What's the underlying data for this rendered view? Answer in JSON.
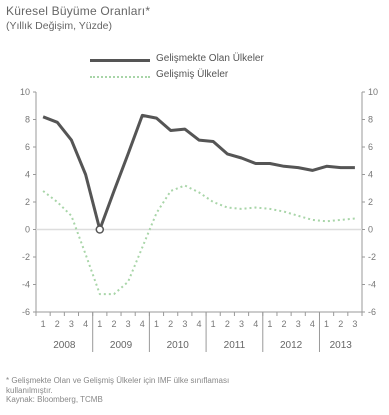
{
  "chart_data": {
    "type": "line",
    "title": "Küresel Büyüme Oranları*",
    "subtitle": "(Yıllık Değişim, Yüzde)",
    "categories": [
      "1",
      "2",
      "3",
      "4",
      "1",
      "2",
      "3",
      "4",
      "1",
      "2",
      "3",
      "4",
      "1",
      "2",
      "3",
      "4",
      "1",
      "2",
      "3",
      "4",
      "1",
      "2",
      "3"
    ],
    "year_groups": [
      {
        "label": "2008",
        "quarters": 4
      },
      {
        "label": "2009",
        "quarters": 4
      },
      {
        "label": "2010",
        "quarters": 4
      },
      {
        "label": "2011",
        "quarters": 4
      },
      {
        "label": "2012",
        "quarters": 4
      },
      {
        "label": "2013",
        "quarters": 3
      }
    ],
    "series": [
      {
        "name": "Gelişmekte Olan Ülkeler",
        "style": "solid",
        "color": "#555555",
        "values": [
          8.2,
          7.8,
          6.5,
          4.0,
          0.0,
          2.8,
          5.5,
          8.3,
          8.1,
          7.2,
          7.3,
          6.5,
          6.4,
          5.5,
          5.2,
          4.8,
          4.8,
          4.6,
          4.5,
          4.3,
          4.6,
          4.5,
          4.5
        ]
      },
      {
        "name": "Gelişmiş Ülkeler",
        "style": "dotted",
        "color": "#a8d5a8",
        "values": [
          2.8,
          2.0,
          1.0,
          -1.8,
          -4.7,
          -4.7,
          -3.8,
          -1.3,
          1.2,
          2.8,
          3.2,
          2.7,
          2.0,
          1.6,
          1.5,
          1.6,
          1.5,
          1.3,
          1.0,
          0.7,
          0.6,
          0.7,
          0.8
        ]
      }
    ],
    "ylim": [
      -6,
      10
    ],
    "yticks": [
      10,
      8,
      6,
      4,
      2,
      0,
      -2,
      -4,
      -6
    ],
    "y_tick_labels": [
      "10",
      "8",
      "6",
      "4",
      "2",
      "0",
      "-2",
      "-4",
      "-6"
    ],
    "grid": false,
    "legend_position": "top-center"
  },
  "notes": [
    "* Gelişmekte Olan ve Gelişmiş Ülkeler için IMF ülke sınıflaması",
    "kullanılmıştır.",
    "Kaynak: Bloomberg, TCMB"
  ]
}
